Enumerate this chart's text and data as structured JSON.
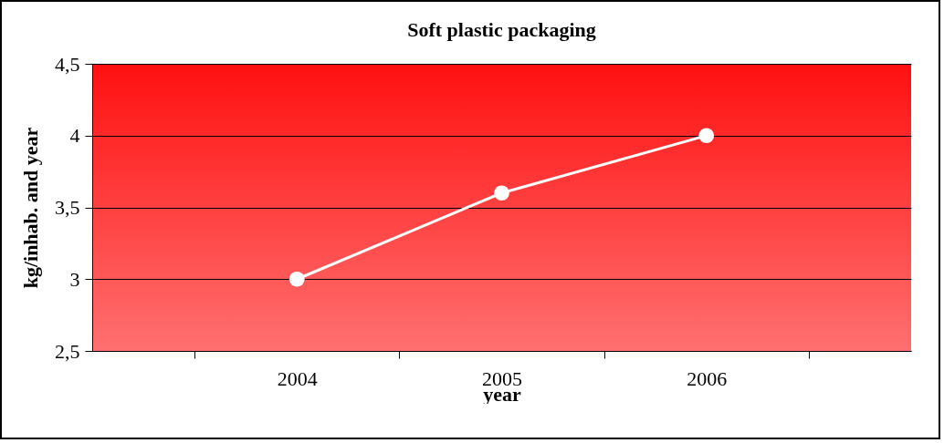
{
  "chart_data": {
    "type": "line",
    "title": "Soft plastic packaging",
    "xlabel": "year",
    "ylabel": "kg/inhab. and year",
    "categories": [
      "2004",
      "2005",
      "2006"
    ],
    "series": [
      {
        "color": "#ffffff",
        "values": [
          3.0,
          3.6,
          4.0
        ]
      }
    ],
    "ylim": [
      2.5,
      4.5
    ],
    "yticks": [
      {
        "value": 2.5,
        "label": "2,5"
      },
      3,
      {
        "value": 3.5,
        "label": "3,5"
      },
      4,
      {
        "value": 4.5,
        "label": "4,5"
      }
    ],
    "grid": "y",
    "marker": "circle",
    "line_style": "solid"
  }
}
